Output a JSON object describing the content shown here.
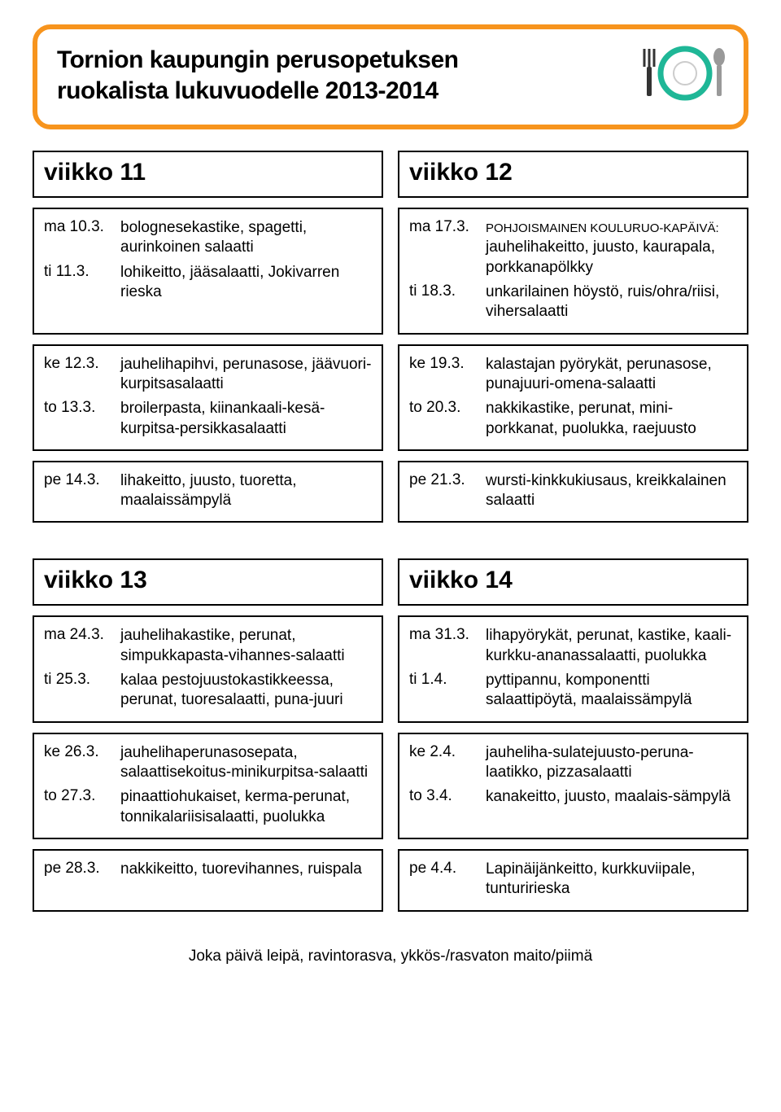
{
  "banner": {
    "line1": "Tornion kaupungin perusopetuksen",
    "line2": "ruokalista lukuvuodelle 2013-2014",
    "border_color": "#f7941d",
    "plate_color": "#1fb797",
    "spoon_color": "#999999",
    "fork_color": "#333333"
  },
  "weeks": [
    {
      "title": "viikko 11",
      "rows": [
        {
          "day": "ma 10.3.",
          "meal": "bolognesekastike, spagetti, aurinkoinen salaatti"
        },
        {
          "day": "ti 11.3.",
          "meal": "lohikeitto, jääsalaatti, Jokivarren rieska"
        },
        {
          "day": "ke 12.3.",
          "meal": "jauhelihapihvi, perunasose, jäävuori-kurpitsasalaatti"
        },
        {
          "day": "to 13.3.",
          "meal": "broilerpasta, kiinankaali-kesä-kurpitsa-persikkasalaatti"
        },
        {
          "day": "pe 14.3.",
          "meal": "lihakeitto, juusto, tuoretta, maalaissämpylä"
        }
      ]
    },
    {
      "title": "viikko 12",
      "rows": [
        {
          "day": "ma 17.3.",
          "meal_caps": "POHJOISMAINEN KOULURUO-KAPÄIVÄ:",
          "meal": " jauhelihakeitto, juusto, kaurapala, porkkanapölkky"
        },
        {
          "day": "ti 18.3.",
          "meal": "unkarilainen höystö, ruis/ohra/riisi, vihersalaatti"
        },
        {
          "day": "ke 19.3.",
          "meal": "kalastajan pyörykät, perunasose, punajuuri-omena-salaatti"
        },
        {
          "day": "to 20.3.",
          "meal": "nakkikastike, perunat, mini-porkkanat, puolukka, raejuusto"
        },
        {
          "day": "pe 21.3.",
          "meal": "wursti-kinkkukiusaus, kreikkalainen salaatti"
        }
      ]
    },
    {
      "title": "viikko 13",
      "rows": [
        {
          "day": "ma 24.3.",
          "meal": "jauhelihakastike, perunat, simpukkapasta-vihannes-salaatti"
        },
        {
          "day": "ti 25.3.",
          "meal": "kalaa pestojuustokastikkeessa, perunat, tuoresalaatti, puna-juuri"
        },
        {
          "day": "ke 26.3.",
          "meal": "jauhelihaperunasosepata, salaattisekoitus-minikurpitsa-salaatti"
        },
        {
          "day": "to 27.3.",
          "meal": "pinaattiohukaiset, kerma-perunat, tonnikalariisisalaatti, puolukka"
        },
        {
          "day": "pe 28.3.",
          "meal": "nakkikeitto, tuorevihannes, ruispala"
        }
      ]
    },
    {
      "title": "viikko 14",
      "rows": [
        {
          "day": "ma 31.3.",
          "meal": "lihapyörykät, perunat, kastike, kaali-kurkku-ananassalaatti, puolukka"
        },
        {
          "day": "ti 1.4.",
          "meal": "pyttipannu, komponentti salaattipöytä, maalaissämpylä"
        },
        {
          "day": "ke 2.4.",
          "meal": "jauheliha-sulatejuusto-peruna-laatikko, pizzasalaatti"
        },
        {
          "day": "to 3.4.",
          "meal": "kanakeitto, juusto, maalais-sämpylä"
        },
        {
          "day": "pe 4.4.",
          "meal": "Lapinäijänkeitto, kurkkuviipale, tunturirieska"
        }
      ]
    }
  ],
  "row_groups": [
    [
      0,
      1
    ],
    [
      2,
      3
    ],
    [
      4,
      4
    ]
  ],
  "footer": "Joka päivä leipä, ravintorasva, ykkös-/rasvaton maito/piimä"
}
